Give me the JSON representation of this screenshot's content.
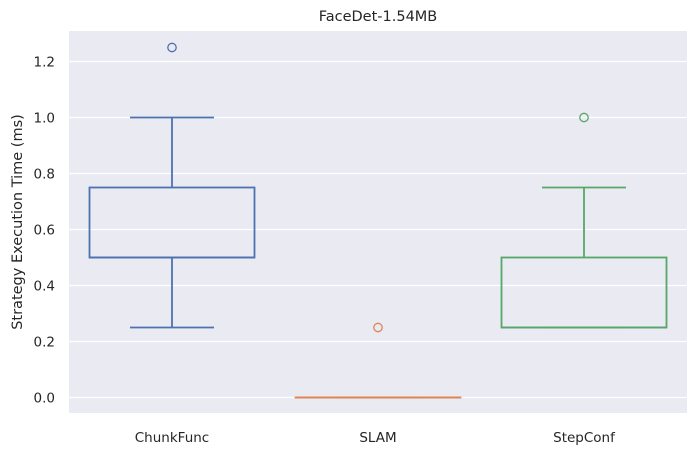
{
  "chart_data": {
    "type": "box",
    "title": "FaceDet-1.54MB",
    "xlabel": "",
    "ylabel": "Strategy Execution Time (ms)",
    "ylim": [
      -0.06,
      1.31
    ],
    "yticks": [
      0.0,
      0.2,
      0.4,
      0.6,
      0.8,
      1.0,
      1.2
    ],
    "ytick_labels": [
      "0.0",
      "0.2",
      "0.4",
      "0.6",
      "0.8",
      "1.0",
      "1.2"
    ],
    "grid": true,
    "categories": [
      "ChunkFunc",
      "SLAM",
      "StepConf"
    ],
    "boxes": [
      {
        "category": "ChunkFunc",
        "whisker_low": 0.25,
        "q1": 0.5,
        "median": 0.5,
        "q3": 0.75,
        "whisker_high": 1.0,
        "outliers": [
          1.25
        ],
        "color": "#4c72b0"
      },
      {
        "category": "SLAM",
        "whisker_low": 0.0,
        "q1": 0.0,
        "median": 0.0,
        "q3": 0.0,
        "whisker_high": 0.0,
        "outliers": [
          0.25
        ],
        "color": "#dd8452"
      },
      {
        "category": "StepConf",
        "whisker_low": 0.25,
        "q1": 0.25,
        "median": 0.25,
        "q3": 0.5,
        "whisker_high": 0.75,
        "outliers": [
          1.0
        ],
        "color": "#55a868"
      }
    ],
    "colors": {
      "plot_background": "#eaeaf2",
      "grid": "#ffffff",
      "text": "#262626"
    }
  }
}
